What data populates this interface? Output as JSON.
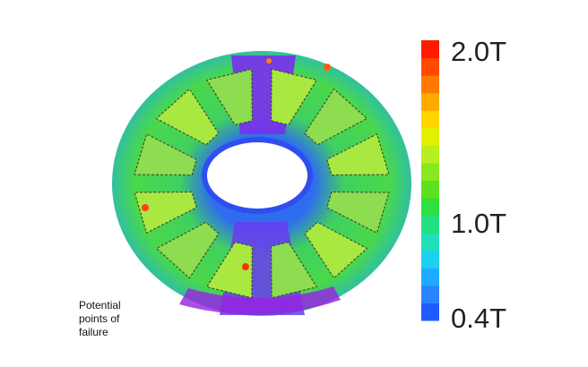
{
  "colorbar": {
    "labels": [
      "2.0T",
      "1.0T",
      "0.4T"
    ]
  },
  "annotation": {
    "lines": [
      "Potential",
      "points of",
      "failure"
    ]
  }
}
